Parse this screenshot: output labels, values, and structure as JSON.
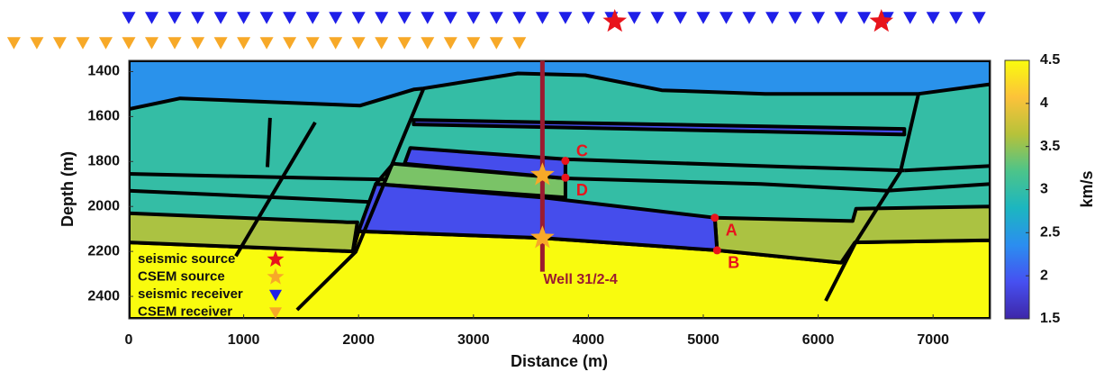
{
  "chart_data": {
    "type": "model",
    "xlabel": "Distance (m)",
    "ylabel": "Depth (m)",
    "xlim": [
      0,
      7500
    ],
    "ylim": [
      1350,
      2500
    ],
    "xticks": [
      0,
      1000,
      2000,
      3000,
      4000,
      5000,
      6000,
      7000
    ],
    "yticks": [
      1400,
      1600,
      1800,
      2000,
      2200,
      2400
    ],
    "y_inverted": true,
    "colorbar": {
      "label": "km/s",
      "lim": [
        1.5,
        4.5
      ],
      "ticks": [
        1.5,
        2,
        2.5,
        3,
        3.5,
        4,
        4.5
      ],
      "colormap": [
        "#3e26a8",
        "#4650f1",
        "#2b8ef0",
        "#1cb6c0",
        "#4cc48a",
        "#b6c23a",
        "#fcc23a",
        "#f9fb0e"
      ]
    },
    "layers": [
      {
        "velocity": 2.4,
        "x": [
          0,
          7500,
          7500,
          0
        ],
        "depth": [
          1350,
          1350,
          2500,
          2500
        ]
      },
      {
        "velocity": 3.0,
        "x": [
          0,
          447,
          1230,
          2014,
          2484,
          2563,
          3386,
          3973,
          4639,
          5541,
          6873,
          7500,
          7500,
          0
        ],
        "depth": [
          1567,
          1519,
          1535,
          1551,
          1479,
          1475,
          1408,
          1416,
          1483,
          1499,
          1499,
          1456,
          2500,
          2500
        ]
      },
      {
        "velocity": 4.5,
        "x": [
          0,
          1950,
          2000,
          3600,
          5120,
          6200,
          6300,
          7500,
          7500,
          0
        ],
        "depth": [
          2160,
          2200,
          2110,
          2140,
          2195,
          2250,
          2160,
          2150,
          2500,
          2500
        ]
      },
      {
        "velocity": 3.6,
        "x": [
          0,
          1900,
          1990,
          1950,
          0
        ],
        "depth": [
          2030,
          2070,
          2070,
          2200,
          2160
        ]
      },
      {
        "velocity": 3.6,
        "x": [
          5100,
          6300,
          6330,
          7500,
          7500,
          6320,
          6200,
          5120
        ],
        "depth": [
          2050,
          2065,
          2010,
          2000,
          2150,
          2160,
          2250,
          2195
        ]
      },
      {
        "velocity": 3.4,
        "x": [
          2300,
          3800,
          3800,
          2150
        ],
        "depth": [
          1810,
          1875,
          1960,
          1900
        ]
      },
      {
        "velocity": 1.9,
        "x": [
          2150,
          3600,
          5100,
          5120,
          3600,
          2000
        ],
        "depth": [
          1900,
          1960,
          2050,
          2195,
          2140,
          2110
        ]
      },
      {
        "velocity": 1.9,
        "x": [
          2450,
          3800,
          3800,
          2400
        ],
        "depth": [
          1740,
          1790,
          1875,
          1810
        ]
      },
      {
        "velocity": 1.9,
        "x": [
          2480,
          6750,
          6750,
          2480
        ],
        "depth": [
          1615,
          1655,
          1680,
          1635
        ]
      }
    ],
    "horizons": [
      {
        "x": [
          0,
          1300,
          2230
        ],
        "depth": [
          1855,
          1870,
          1880
        ]
      },
      {
        "x": [
          0,
          1300,
          2100
        ],
        "depth": [
          1930,
          1960,
          1980
        ]
      },
      {
        "x": [
          3800,
          5500,
          6750
        ],
        "depth": [
          1790,
          1820,
          1840
        ]
      },
      {
        "x": [
          3800,
          5500,
          6600
        ],
        "depth": [
          1875,
          1900,
          1930
        ]
      },
      {
        "x": [
          6750,
          7500
        ],
        "depth": [
          1840,
          1820
        ]
      },
      {
        "x": [
          6600,
          7500
        ],
        "depth": [
          1930,
          1900
        ]
      }
    ],
    "faults": [
      {
        "x": [
          1230,
          1207
        ],
        "depth": [
          1606,
          1825
        ]
      },
      {
        "x": [
          1622,
          932
        ],
        "depth": [
          1626,
          2221
        ]
      },
      {
        "x": [
          2563,
          1975,
          1465
        ],
        "depth": [
          1479,
          2202,
          2460
        ]
      },
      {
        "x": [
          6873,
          6716,
          6324,
          6066
        ],
        "depth": [
          1499,
          1845,
          2162,
          2420
        ]
      },
      {
        "x": [
          3800,
          3800
        ],
        "depth": [
          1797,
          1872
        ]
      }
    ],
    "well": {
      "name": "Well 31/2-4",
      "x": 3600,
      "depth": [
        1350,
        2290
      ],
      "color": "#9b1b30"
    },
    "points": [
      {
        "label": "A",
        "x": 5100,
        "depth": 2050
      },
      {
        "label": "B",
        "x": 5120,
        "depth": 2195
      },
      {
        "label": "C",
        "x": 3800,
        "depth": 1797
      },
      {
        "label": "D",
        "x": 3800,
        "depth": 1872
      }
    ],
    "point_color": "#e8141c",
    "seismic_sources": {
      "name": "seismic source",
      "x": [
        4230,
        6550
      ],
      "color": "#e8141c"
    },
    "csem_sources": {
      "name": "CSEM source",
      "x": [
        3600,
        3600
      ],
      "depth": [
        1860,
        2140
      ],
      "color": "#f7a928"
    },
    "seismic_receivers": {
      "name": "seismic receiver",
      "color": "#1f1fe8",
      "x": [
        0,
        200,
        400,
        600,
        800,
        1000,
        1200,
        1400,
        1600,
        1800,
        2000,
        2200,
        2400,
        2600,
        2800,
        3000,
        3200,
        3400,
        3600,
        3800,
        4000,
        4200,
        4400,
        4600,
        4800,
        5000,
        5200,
        5400,
        5600,
        5800,
        6000,
        6200,
        6400,
        6600,
        6800,
        7000,
        7200,
        7400
      ]
    },
    "csem_receivers": {
      "name": "CSEM receiver",
      "color": "#f7a928",
      "x": [
        -1000,
        -800,
        -600,
        -400,
        -200,
        0,
        200,
        400,
        600,
        800,
        1000,
        1200,
        1400,
        1600,
        1800,
        2000,
        2200,
        2400,
        2600,
        2800,
        3000,
        3200,
        3400
      ]
    }
  }
}
